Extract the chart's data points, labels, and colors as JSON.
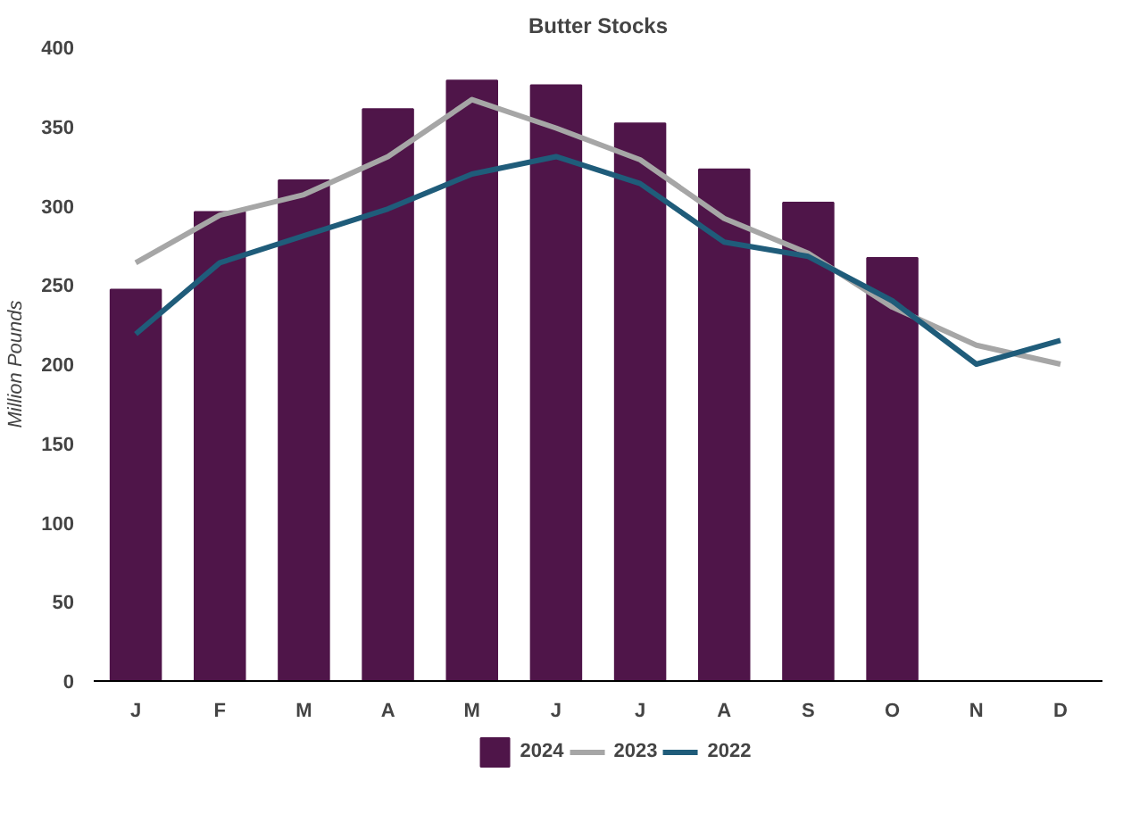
{
  "chart_data": {
    "type": "bar",
    "title": "Butter Stocks",
    "ylabel": "Million Pounds",
    "categories": [
      "J",
      "F",
      "M",
      "A",
      "M",
      "J",
      "J",
      "A",
      "S",
      "O",
      "N",
      "D"
    ],
    "series": [
      {
        "name": "2024",
        "color": "#4f1549",
        "values": [
          247,
          296,
          316,
          361,
          379,
          376,
          352,
          323,
          302,
          267,
          null,
          null
        ]
      },
      {
        "name": "2023",
        "type": "line",
        "color": "#a6a6a6",
        "values": [
          264,
          294,
          307,
          331,
          367,
          349,
          329,
          292,
          270,
          236,
          212,
          200
        ]
      },
      {
        "name": "2022",
        "type": "line",
        "color": "#1f5c7a",
        "values": [
          219,
          264,
          281,
          298,
          320,
          331,
          314,
          277,
          268,
          240,
          200,
          215
        ]
      }
    ],
    "ylim": [
      0,
      400
    ],
    "yticks": [
      0,
      50,
      100,
      150,
      200,
      250,
      300,
      350,
      400
    ],
    "grid": false,
    "legend": "bottom"
  }
}
